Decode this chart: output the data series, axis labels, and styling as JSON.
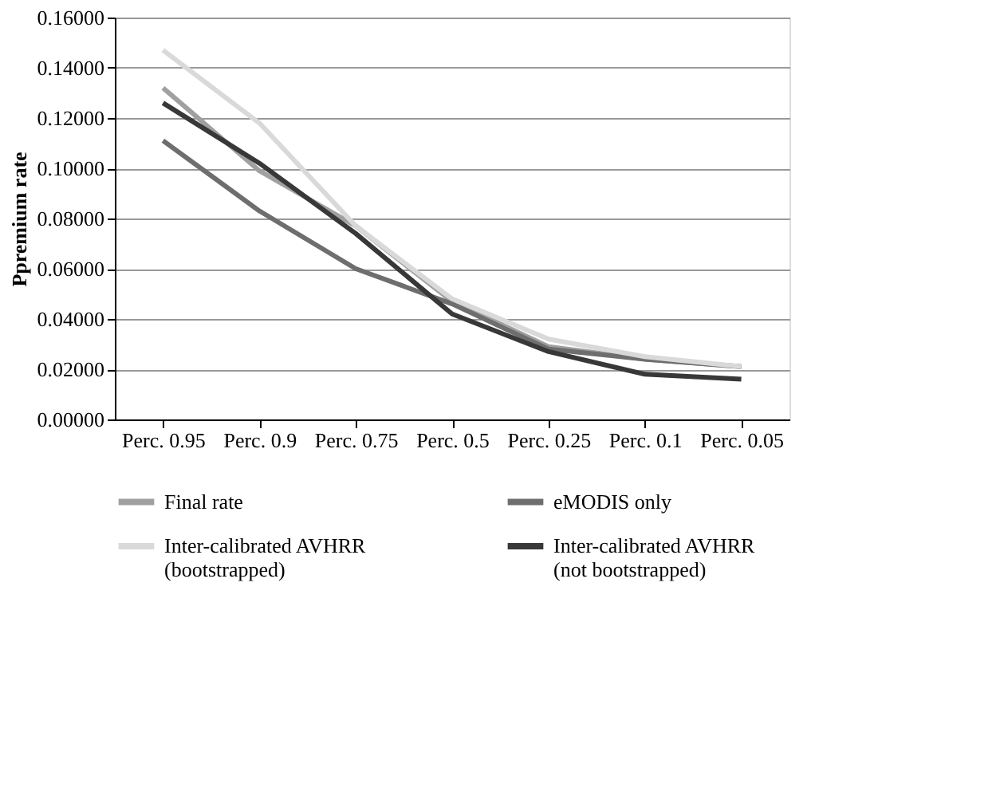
{
  "chart_data": {
    "type": "line",
    "ylabel": "Ppremium rate",
    "categories": [
      "Perc. 0.95",
      "Perc. 0.9",
      "Perc. 0.75",
      "Perc. 0.5",
      "Perc. 0.25",
      "Perc. 0.1",
      "Perc. 0.05"
    ],
    "series": [
      {
        "name": "Final rate",
        "color": "#a0a0a0",
        "values": [
          0.132,
          0.099,
          0.077,
          0.047,
          0.029,
          0.024,
          0.021
        ]
      },
      {
        "name": "eMODIS only",
        "color": "#6e6e6e",
        "values": [
          0.111,
          0.083,
          0.06,
          0.046,
          0.028,
          0.024,
          0.021
        ]
      },
      {
        "name": "Inter-calibrated AVHRR (bootstrapped)",
        "color": "#d9d9d9",
        "values": [
          0.147,
          0.118,
          0.077,
          0.048,
          0.032,
          0.025,
          0.021
        ]
      },
      {
        "name": "Inter-calibrated AVHRR (not bootstrapped)",
        "color": "#383838",
        "values": [
          0.126,
          0.102,
          0.074,
          0.042,
          0.027,
          0.018,
          0.016
        ]
      }
    ],
    "ylim": [
      0,
      0.16
    ],
    "yticks": [
      {
        "value": 0,
        "label": "0.00000"
      },
      {
        "value": 0.02,
        "label": "0.02000"
      },
      {
        "value": 0.04,
        "label": "0.04000"
      },
      {
        "value": 0.06,
        "label": "0.06000"
      },
      {
        "value": 0.08,
        "label": "0.08000"
      },
      {
        "value": 0.1,
        "label": "0.10000"
      },
      {
        "value": 0.12,
        "label": "0.12000"
      },
      {
        "value": 0.14,
        "label": "0.14000"
      },
      {
        "value": 0.16,
        "label": "0.16000"
      }
    ],
    "grid": "y",
    "legend": "bottom",
    "marker": "none",
    "line_style": "solid"
  }
}
